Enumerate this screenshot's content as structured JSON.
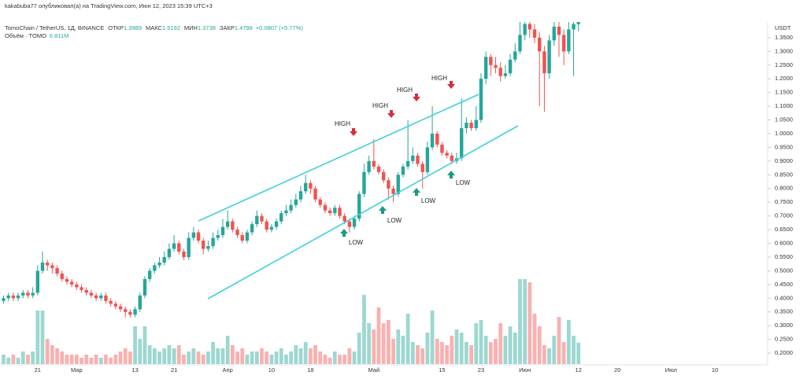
{
  "chart_data": {
    "type": "candlestick",
    "header": "kakabuba77 опубликовал(а) на TradingView.com, Июн 12, 2023 15:39 UTC+3",
    "title": "TomoChain / TetherUS, 1Д, BINANCE",
    "legend_labels": [
      "ОТКР",
      "МАКС",
      "МИН",
      "ЗАКР"
    ],
    "change": "+0.0807 (+5.77%)",
    "volume_title": "Объём · TOMO",
    "volume_label": "6.811M",
    "y_unit": "USDT",
    "up_color": "#26a69a",
    "down_color": "#ef5350",
    "trendline_color": "#3fd0dc",
    "high_labels": [
      "HIGH",
      "HIGH",
      "HIGH",
      "HIGH"
    ],
    "low_labels": [
      "LOW",
      "LOW",
      "LOW",
      "LOW"
    ],
    "categories": [
      null,
      null,
      null,
      null,
      null,
      null,
      null,
      "21",
      null,
      null,
      null,
      null,
      null,
      null,
      null,
      "Мар",
      null,
      null,
      null,
      null,
      null,
      null,
      null,
      null,
      null,
      null,
      null,
      "13",
      null,
      null,
      null,
      null,
      null,
      null,
      null,
      "21",
      null,
      null,
      null,
      null,
      null,
      null,
      null,
      null,
      null,
      null,
      "Апр",
      null,
      null,
      null,
      null,
      null,
      null,
      null,
      null,
      "10",
      null,
      null,
      null,
      null,
      null,
      null,
      null,
      "18",
      null,
      null,
      null,
      null,
      null,
      null,
      null,
      null,
      null,
      null,
      null,
      null,
      "Май",
      null,
      null,
      null,
      null,
      null,
      null,
      null,
      null,
      null,
      null,
      null,
      null,
      null,
      "15",
      null,
      null,
      null,
      null,
      null,
      null,
      null,
      "23",
      null,
      null,
      null,
      null,
      null,
      null,
      null,
      null,
      "Июн",
      null,
      null,
      null,
      null,
      null,
      null,
      null,
      null,
      null,
      null,
      "12",
      null,
      null,
      null,
      null,
      null,
      null,
      null,
      "20",
      null,
      null,
      null,
      null,
      null,
      null,
      null,
      null,
      null,
      null,
      "Июл",
      null,
      null,
      null,
      null,
      null,
      null,
      null,
      null,
      "10"
    ],
    "open": [
      0.39,
      0.4,
      0.41,
      0.4,
      0.41,
      0.42,
      0.41,
      0.42,
      0.5,
      0.53,
      0.52,
      0.51,
      0.49,
      0.47,
      0.46,
      0.45,
      0.44,
      0.43,
      0.42,
      0.41,
      0.4,
      0.41,
      0.39,
      0.38,
      0.37,
      0.36,
      0.35,
      0.34,
      0.36,
      0.41,
      0.47,
      0.5,
      0.52,
      0.53,
      0.55,
      0.58,
      0.6,
      0.57,
      0.55,
      0.62,
      0.64,
      0.61,
      0.58,
      0.59,
      0.62,
      0.63,
      0.66,
      0.68,
      0.65,
      0.63,
      0.61,
      0.64,
      0.67,
      0.7,
      0.68,
      0.65,
      0.66,
      0.68,
      0.71,
      0.72,
      0.74,
      0.76,
      0.79,
      0.82,
      0.8,
      0.76,
      0.74,
      0.72,
      0.71,
      0.73,
      0.7,
      0.68,
      0.66,
      0.69,
      0.78,
      0.86,
      0.9,
      0.88,
      0.86,
      0.83,
      0.8,
      0.78,
      0.85,
      0.88,
      0.9,
      0.92,
      0.89,
      0.86,
      0.95,
      1.0,
      0.96,
      0.93,
      0.92,
      0.9,
      0.91,
      1.02,
      1.04,
      1.02,
      1.05,
      1.2,
      1.28,
      1.25,
      1.24,
      1.21,
      1.22,
      1.27,
      1.3,
      1.36,
      1.4,
      1.38,
      1.35,
      1.3,
      1.22,
      1.34,
      1.39,
      1.36,
      1.3,
      1.38,
      1.3989,
      null,
      null,
      null,
      null,
      null,
      null,
      null,
      null,
      null,
      null,
      null,
      null,
      null,
      null,
      null,
      null,
      null,
      null,
      null,
      null,
      null,
      null,
      null,
      null,
      null,
      null,
      null,
      null
    ],
    "high": [
      0.41,
      0.42,
      0.42,
      0.42,
      0.43,
      0.43,
      0.44,
      0.52,
      0.57,
      0.54,
      0.53,
      0.52,
      0.5,
      0.48,
      0.47,
      0.46,
      0.45,
      0.44,
      0.43,
      0.42,
      0.42,
      0.42,
      0.4,
      0.39,
      0.38,
      0.37,
      0.36,
      0.37,
      0.42,
      0.48,
      0.51,
      0.53,
      0.55,
      0.57,
      0.6,
      0.63,
      0.61,
      0.58,
      0.64,
      0.66,
      0.65,
      0.62,
      0.61,
      0.64,
      0.65,
      0.69,
      0.72,
      0.69,
      0.66,
      0.64,
      0.65,
      0.68,
      0.72,
      0.71,
      0.69,
      0.67,
      0.69,
      0.72,
      0.74,
      0.76,
      0.78,
      0.81,
      0.85,
      0.83,
      0.81,
      0.77,
      0.75,
      0.73,
      0.74,
      0.74,
      0.71,
      0.69,
      0.7,
      0.79,
      0.89,
      0.92,
      0.98,
      0.89,
      0.87,
      0.84,
      0.81,
      0.86,
      0.89,
      1.05,
      0.95,
      0.93,
      0.9,
      0.97,
      1.1,
      1.01,
      0.97,
      0.94,
      0.93,
      0.93,
      1.13,
      1.06,
      1.05,
      1.1,
      1.22,
      1.3,
      1.29,
      1.28,
      1.26,
      1.25,
      1.29,
      1.33,
      1.45,
      1.45,
      1.42,
      1.4,
      1.37,
      1.32,
      1.36,
      1.42,
      1.41,
      1.38,
      1.42,
      1.42,
      1.5192,
      null,
      null,
      null,
      null,
      null,
      null,
      null,
      null,
      null,
      null,
      null,
      null,
      null,
      null,
      null,
      null,
      null,
      null,
      null,
      null,
      null,
      null,
      null,
      null,
      null,
      null,
      null,
      null
    ],
    "low": [
      0.38,
      0.39,
      0.39,
      0.39,
      0.4,
      0.4,
      0.4,
      0.41,
      0.49,
      0.5,
      0.49,
      0.48,
      0.46,
      0.45,
      0.44,
      0.43,
      0.42,
      0.41,
      0.4,
      0.39,
      0.39,
      0.38,
      0.37,
      0.36,
      0.35,
      0.33,
      0.33,
      0.33,
      0.35,
      0.4,
      0.46,
      0.49,
      0.51,
      0.52,
      0.54,
      0.57,
      0.56,
      0.54,
      0.54,
      0.61,
      0.6,
      0.56,
      0.57,
      0.58,
      0.61,
      0.62,
      0.65,
      0.64,
      0.62,
      0.6,
      0.6,
      0.63,
      0.66,
      0.67,
      0.64,
      0.64,
      0.65,
      0.67,
      0.7,
      0.71,
      0.73,
      0.75,
      0.78,
      0.78,
      0.75,
      0.73,
      0.71,
      0.7,
      0.7,
      0.69,
      0.67,
      0.64,
      0.65,
      0.68,
      0.77,
      0.85,
      0.87,
      0.85,
      0.82,
      0.76,
      0.75,
      0.77,
      0.84,
      0.87,
      0.89,
      0.88,
      0.8,
      0.85,
      0.94,
      0.95,
      0.92,
      0.91,
      0.89,
      0.89,
      0.9,
      1.0,
      1.01,
      1.01,
      1.04,
      1.18,
      1.21,
      1.22,
      1.19,
      1.2,
      1.21,
      1.26,
      1.29,
      1.34,
      1.35,
      1.33,
      1.1,
      1.08,
      1.2,
      1.32,
      1.28,
      1.25,
      1.29,
      1.21,
      1.3738,
      null,
      null,
      null,
      null,
      null,
      null,
      null,
      null,
      null,
      null,
      null,
      null,
      null,
      null,
      null,
      null,
      null,
      null,
      null,
      null,
      null,
      null,
      null,
      null,
      null,
      null,
      null,
      null
    ],
    "close": [
      0.4,
      0.41,
      0.4,
      0.41,
      0.42,
      0.41,
      0.42,
      0.5,
      0.53,
      0.52,
      0.51,
      0.49,
      0.47,
      0.46,
      0.45,
      0.44,
      0.43,
      0.42,
      0.41,
      0.4,
      0.41,
      0.39,
      0.38,
      0.37,
      0.36,
      0.35,
      0.34,
      0.36,
      0.41,
      0.47,
      0.5,
      0.52,
      0.53,
      0.55,
      0.58,
      0.6,
      0.57,
      0.55,
      0.62,
      0.64,
      0.61,
      0.58,
      0.59,
      0.62,
      0.63,
      0.66,
      0.68,
      0.65,
      0.63,
      0.61,
      0.64,
      0.67,
      0.7,
      0.68,
      0.65,
      0.66,
      0.68,
      0.71,
      0.72,
      0.74,
      0.76,
      0.79,
      0.82,
      0.8,
      0.76,
      0.74,
      0.72,
      0.71,
      0.73,
      0.7,
      0.68,
      0.66,
      0.69,
      0.78,
      0.86,
      0.9,
      0.88,
      0.86,
      0.83,
      0.8,
      0.78,
      0.85,
      0.88,
      0.9,
      0.92,
      0.89,
      0.86,
      0.95,
      1.0,
      0.96,
      0.93,
      0.92,
      0.9,
      0.91,
      1.02,
      1.04,
      1.02,
      1.05,
      1.2,
      1.28,
      1.25,
      1.24,
      1.21,
      1.22,
      1.27,
      1.3,
      1.36,
      1.4,
      1.38,
      1.35,
      1.3,
      1.22,
      1.34,
      1.39,
      1.36,
      1.3,
      1.38,
      1.4,
      1.4798,
      null,
      null,
      null,
      null,
      null,
      null,
      null,
      null,
      null,
      null,
      null,
      null,
      null,
      null,
      null,
      null,
      null,
      null,
      null,
      null,
      null,
      null,
      null,
      null,
      null,
      null,
      null,
      null
    ],
    "volume": [
      3,
      2,
      3,
      2,
      4,
      3,
      4,
      17,
      17,
      8,
      6,
      5,
      4,
      3,
      3,
      3,
      2,
      3,
      2,
      3,
      2,
      3,
      2,
      3,
      4,
      5,
      4,
      12,
      8,
      12,
      6,
      5,
      4,
      5,
      6,
      5,
      6,
      3,
      4,
      5,
      4,
      3,
      4,
      7,
      5,
      5,
      9,
      6,
      4,
      5,
      3,
      4,
      4,
      5,
      4,
      3,
      4,
      5,
      3,
      4,
      6,
      5,
      7,
      5,
      6,
      4,
      3,
      2,
      4,
      3,
      3,
      5,
      4,
      10,
      22,
      13,
      11,
      18,
      13,
      14,
      8,
      11,
      9,
      16,
      7,
      6,
      5,
      10,
      17,
      8,
      7,
      6,
      9,
      11,
      10,
      7,
      6,
      13,
      14,
      9,
      7,
      8,
      13,
      9,
      12,
      10,
      27,
      27,
      26,
      16,
      12,
      6,
      5,
      9,
      15,
      7,
      14,
      9,
      6.811,
      null,
      null,
      null,
      null,
      null,
      null,
      null,
      null,
      null,
      null,
      null,
      null,
      null,
      null,
      null,
      null,
      null,
      null,
      null,
      null,
      null,
      null,
      null,
      null,
      null,
      null,
      null,
      null
    ],
    "volume_lim": [
      0,
      40
    ],
    "ylim": [
      0.16,
      1.407
    ],
    "yticks": [
      {
        "value": 0.2,
        "label": "0.2000"
      },
      {
        "value": 0.25,
        "label": "0.2500"
      },
      {
        "value": 0.3,
        "label": "0.3000"
      },
      {
        "value": 0.35,
        "label": "0.3500"
      },
      {
        "value": 0.4,
        "label": "0.4000"
      },
      {
        "value": 0.45,
        "label": "0.4500"
      },
      {
        "value": 0.5,
        "label": "0.5000"
      },
      {
        "value": 0.55,
        "label": "0.5500"
      },
      {
        "value": 0.6,
        "label": "0.6000"
      },
      {
        "value": 0.65,
        "label": "0.6500"
      },
      {
        "value": 0.7,
        "label": "0.7000"
      },
      {
        "value": 0.75,
        "label": "0.7500"
      },
      {
        "value": 0.8,
        "label": "0.8000"
      },
      {
        "value": 0.85,
        "label": "0.8500"
      },
      {
        "value": 0.9,
        "label": "0.9000"
      },
      {
        "value": 0.95,
        "label": "0.9500"
      },
      {
        "value": 1.0,
        "label": "1.0000"
      },
      {
        "value": 1.05,
        "label": "1.0500"
      },
      {
        "value": 1.1,
        "label": "1.1000"
      },
      {
        "value": 1.15,
        "label": "1.1500"
      },
      {
        "value": 1.2,
        "label": "1.2000"
      },
      {
        "value": 1.25,
        "label": "1.2500"
      },
      {
        "value": 1.3,
        "label": "1.3000"
      },
      {
        "value": 1.35,
        "label": "1.3500"
      }
    ]
  }
}
